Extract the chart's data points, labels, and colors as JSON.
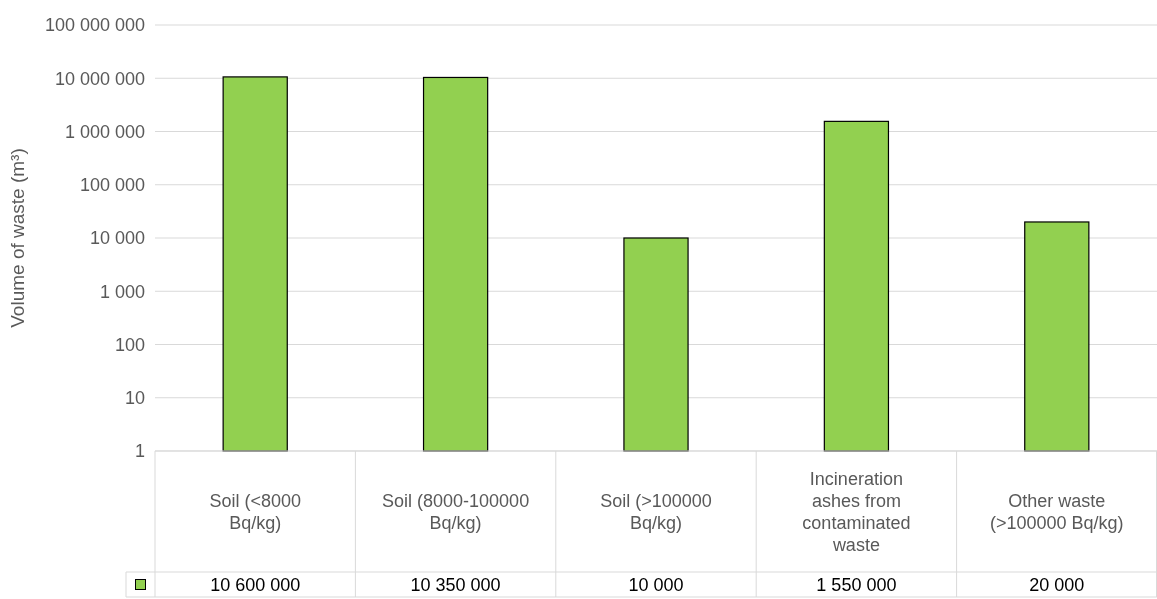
{
  "chart_data": {
    "type": "bar",
    "ylabel": "Volume of waste (m³)",
    "categories": [
      "Soil (<8000 Bq/kg)",
      "Soil (8000-100000 Bq/kg)",
      "Soil (>100000 Bq/kg)",
      "Incineration ashes from contaminated waste",
      "Other waste (>100000 Bq/kg)"
    ],
    "series": [
      {
        "color": "#92d050",
        "values": [
          10600000,
          10350000,
          10000,
          1550000,
          20000
        ],
        "value_labels": [
          "10 600 000",
          "10 350 000",
          "10 000",
          "1 550 000",
          "20 000"
        ]
      }
    ],
    "log": true,
    "ylim": [
      1,
      100000000
    ],
    "yticks": [
      1,
      10,
      100,
      {
        "value": 1000,
        "label": "1 000"
      },
      {
        "value": 10000,
        "label": "10 000"
      },
      {
        "value": 100000,
        "label": "100 000"
      },
      {
        "value": 1000000,
        "label": "1 000 000"
      },
      {
        "value": 10000000,
        "label": "10 000 000"
      },
      {
        "value": 100000000,
        "label": "100 000 000"
      }
    ],
    "grid": "y"
  }
}
